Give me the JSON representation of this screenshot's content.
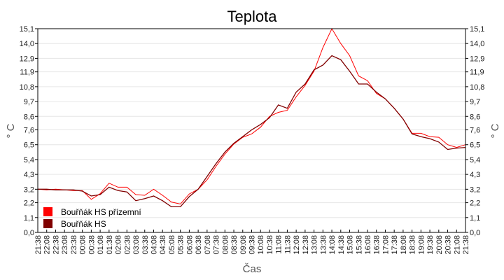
{
  "chart_data": {
    "type": "line",
    "title": "Teplota",
    "xlabel": "Čas",
    "ylabel": "° C",
    "ylim": [
      0,
      15.1
    ],
    "yticks": [
      "0,0",
      "1,1",
      "2,2",
      "3,2",
      "4,3",
      "5,4",
      "6,5",
      "7,6",
      "8,6",
      "9,7",
      "10,8",
      "11,9",
      "12,9",
      "14,0",
      "15,1"
    ],
    "ytick_values": [
      0,
      1.1,
      2.2,
      3.2,
      4.3,
      5.4,
      6.5,
      7.6,
      8.6,
      9.7,
      10.8,
      11.9,
      12.9,
      14.0,
      15.1
    ],
    "grid": true,
    "legend_position": "bottom-left",
    "x": [
      "21:38",
      "22:08",
      "22:38",
      "23:08",
      "23:38",
      "00:08",
      "00:38",
      "01:08",
      "01:38",
      "02:08",
      "02:38",
      "03:08",
      "03:38",
      "04:08",
      "04:38",
      "05:08",
      "05:38",
      "06:08",
      "06:38",
      "07:08",
      "07:38",
      "08:08",
      "08:38",
      "09:08",
      "09:38",
      "10:08",
      "10:38",
      "11:08",
      "11:38",
      "12:08",
      "12:38",
      "13:08",
      "13:38",
      "14:08",
      "14:38",
      "15:08",
      "15:38",
      "16:08",
      "16:38",
      "17:08",
      "17:38",
      "18:08",
      "18:38",
      "19:08",
      "19:38",
      "20:08",
      "20:38",
      "21:08",
      "21:38"
    ],
    "series": [
      {
        "name": "Bouřňák HS přízemní",
        "color": "#ff0000",
        "values": [
          3.2,
          3.15,
          3.2,
          3.15,
          3.1,
          3.1,
          2.45,
          2.87,
          3.65,
          3.35,
          3.35,
          2.8,
          2.75,
          3.2,
          2.75,
          2.25,
          2.1,
          2.85,
          3.2,
          3.9,
          4.9,
          5.8,
          6.55,
          7.05,
          7.3,
          7.8,
          8.6,
          8.9,
          9.05,
          10.05,
          10.9,
          11.95,
          13.7,
          15.1,
          14.0,
          13.1,
          11.6,
          11.25,
          10.3,
          9.9,
          9.2,
          8.4,
          7.35,
          7.35,
          7.1,
          7.05,
          6.5,
          6.3,
          6.5
        ]
      },
      {
        "name": "Bouřňák HS",
        "color": "#800000",
        "values": [
          3.2,
          3.2,
          3.15,
          3.15,
          3.15,
          3.06,
          2.7,
          2.8,
          3.35,
          3.1,
          3.0,
          2.35,
          2.5,
          2.7,
          2.35,
          1.9,
          1.9,
          2.65,
          3.2,
          4.15,
          5.1,
          5.95,
          6.6,
          7.1,
          7.6,
          8.0,
          8.5,
          9.45,
          9.2,
          10.4,
          11.0,
          12.05,
          12.4,
          13.1,
          12.8,
          11.95,
          11.0,
          11.0,
          10.4,
          9.9,
          9.2,
          8.4,
          7.3,
          7.1,
          6.95,
          6.7,
          6.15,
          6.25,
          6.3
        ]
      }
    ]
  }
}
